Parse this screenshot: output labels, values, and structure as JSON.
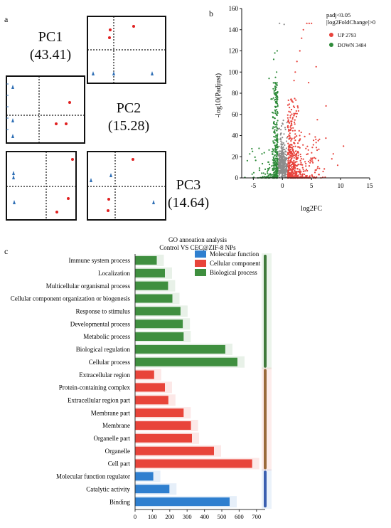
{
  "panel_labels": {
    "a": "a",
    "b": "b",
    "c": "c"
  },
  "pca": {
    "titles": [
      {
        "line1": "PC1",
        "line2": "(43.41)"
      },
      {
        "line1": "PC2",
        "line2": "(15.28)"
      },
      {
        "line1": "PC3",
        "line2": "(14.64)"
      }
    ]
  },
  "chart_data": [
    {
      "type": "scatter",
      "panel": "b",
      "title": "",
      "xlabel": "log2FC",
      "ylabel": "-log10(Padjust)",
      "xlim": [
        -7,
        15
      ],
      "ylim": [
        0,
        160
      ],
      "x_ticks": [
        "-5",
        "0",
        "5",
        "10",
        "15"
      ],
      "y_ticks": [
        "0",
        "20",
        "40",
        "60",
        "80",
        "100",
        "120",
        "140",
        "160"
      ],
      "legend": {
        "title_line1": "padj<0.05",
        "title_line2": "|log2FoldChange|>0",
        "placement": "top-right",
        "entries": [
          {
            "label": "UP 2793",
            "color": "#e8423b"
          },
          {
            "label": "DOWN 3484",
            "color": "#2e8b3a"
          }
        ]
      },
      "series_colors": {
        "up": "#e8423b",
        "down": "#2e8b3a",
        "ns": "#8c8c8c"
      }
    },
    {
      "type": "bar",
      "panel": "c",
      "title_line1": "GO annoation analysis",
      "title_line2": "Control VS CEC@ZIF-8 NPs",
      "orientation": "horizontal",
      "xlim": [
        0,
        750
      ],
      "x_ticks": [
        "0",
        "100",
        "200",
        "300",
        "400",
        "500",
        "600",
        "700"
      ],
      "legend": [
        {
          "label": "Molecular function",
          "color": "#2f7fcf"
        },
        {
          "label": "Cellular component",
          "color": "#e8443a"
        },
        {
          "label": "Biological process",
          "color": "#3f8f3f"
        }
      ],
      "groups": [
        {
          "name": "Biological process",
          "color": "#3f8f3f",
          "bracket_color": "#3f7a3a"
        },
        {
          "name": "Cellular component",
          "color": "#e8443a",
          "bracket_color": "#9a6a3a"
        },
        {
          "name": "Molecular function",
          "color": "#2f7fcf",
          "bracket_color": "#3a5fb0"
        }
      ],
      "categories": [
        {
          "label": "Immune system process",
          "value": 125,
          "group": 0
        },
        {
          "label": "Localization",
          "value": 172,
          "group": 0
        },
        {
          "label": "Multicellular organismal process",
          "value": 190,
          "group": 0
        },
        {
          "label": "Cellular component organization or biogenesis",
          "value": 215,
          "group": 0
        },
        {
          "label": "Response to stimulus",
          "value": 262,
          "group": 0
        },
        {
          "label": "Developmental process",
          "value": 275,
          "group": 0
        },
        {
          "label": "Metabolic process",
          "value": 280,
          "group": 0
        },
        {
          "label": "Biological regulation",
          "value": 520,
          "group": 0
        },
        {
          "label": "Cellular process",
          "value": 590,
          "group": 0
        },
        {
          "label": "Extracellular region",
          "value": 110,
          "group": 1
        },
        {
          "label": "Protein-containing complex",
          "value": 172,
          "group": 1
        },
        {
          "label": "Extracellular region part",
          "value": 192,
          "group": 1
        },
        {
          "label": "Membrane part",
          "value": 280,
          "group": 1
        },
        {
          "label": "Membrane",
          "value": 322,
          "group": 1
        },
        {
          "label": "Organelle part",
          "value": 328,
          "group": 1
        },
        {
          "label": "Organelle",
          "value": 455,
          "group": 1
        },
        {
          "label": "Cell part",
          "value": 675,
          "group": 1
        },
        {
          "label": "Molecular function regulator",
          "value": 105,
          "group": 2
        },
        {
          "label": "Catalytic activity",
          "value": 198,
          "group": 2
        },
        {
          "label": "Binding",
          "value": 545,
          "group": 2
        }
      ]
    }
  ]
}
